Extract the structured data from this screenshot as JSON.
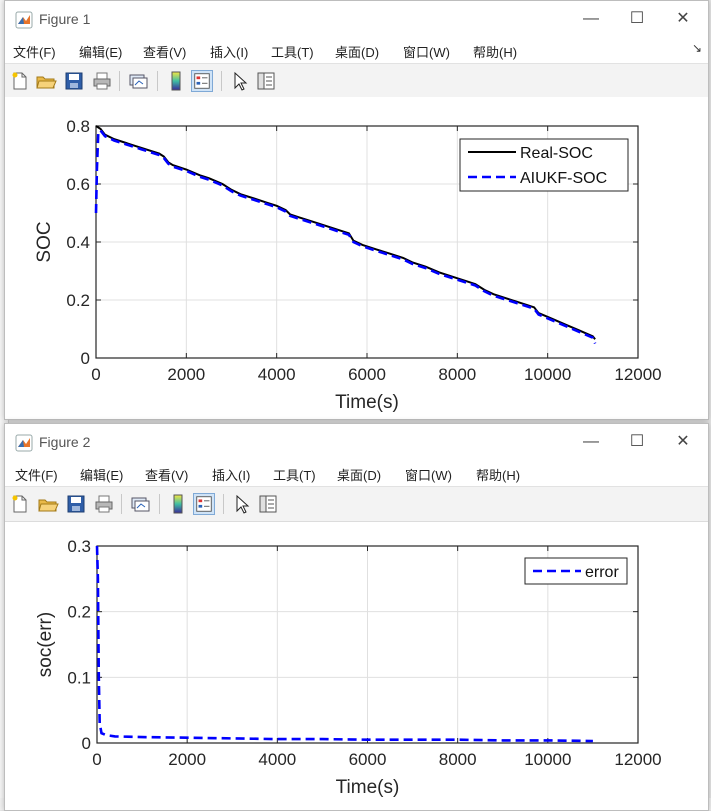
{
  "menu_labels": [
    "文件(F)",
    "编辑(E)",
    "查看(V)",
    "插入(I)",
    "工具(T)",
    "桌面(D)",
    "窗口(W)",
    "帮助(H)"
  ],
  "window_controls": {
    "minimize": "—",
    "maximize": "☐",
    "close": "✕"
  },
  "toolbar_icons": [
    "new-figure-icon",
    "open-file-icon",
    "save-icon",
    "print-icon",
    "link-plot-icon",
    "colorbar-icon",
    "legend-icon",
    "pointer-icon",
    "property-inspector-icon"
  ],
  "colors": {
    "real_soc": "#000000",
    "aiukf_soc": "#0000ff",
    "error": "#0000ff",
    "grid": "#e0e0e0",
    "axis": "#262626"
  },
  "windows": [
    {
      "title": "Figure 1"
    },
    {
      "title": "Figure 2"
    }
  ],
  "chart_data": [
    {
      "type": "line",
      "xlabel": "Time(s)",
      "ylabel": "SOC",
      "xlim": [
        0,
        12000
      ],
      "ylim": [
        0,
        0.8
      ],
      "xticks": [
        0,
        2000,
        4000,
        6000,
        8000,
        10000,
        12000
      ],
      "yticks": [
        0,
        0.2,
        0.4,
        0.6,
        0.8
      ],
      "ytick_labels": [
        "0",
        "0.2",
        "0.4",
        "0.6",
        "0.8"
      ],
      "grid": true,
      "legend_position": "top-right",
      "series": [
        {
          "name": "Real-SOC",
          "style": "solid",
          "x": [
            0,
            100,
            200,
            400,
            600,
            800,
            1000,
            1200,
            1400,
            1500,
            1600,
            1700,
            2000,
            2300,
            2500,
            2800,
            3000,
            3200,
            3500,
            3800,
            4000,
            4200,
            4300,
            4500,
            4800,
            5100,
            5400,
            5600,
            5700,
            5900,
            6200,
            6500,
            6800,
            7000,
            7300,
            7600,
            7900,
            8200,
            8400,
            8600,
            8800,
            9100,
            9400,
            9700,
            9800,
            10100,
            10400,
            10700,
            11000,
            11050
          ],
          "y": [
            0.8,
            0.79,
            0.77,
            0.755,
            0.745,
            0.735,
            0.725,
            0.715,
            0.705,
            0.695,
            0.675,
            0.665,
            0.65,
            0.63,
            0.62,
            0.6,
            0.58,
            0.565,
            0.55,
            0.535,
            0.525,
            0.51,
            0.495,
            0.485,
            0.47,
            0.455,
            0.44,
            0.43,
            0.405,
            0.39,
            0.375,
            0.36,
            0.345,
            0.33,
            0.315,
            0.295,
            0.28,
            0.265,
            0.255,
            0.235,
            0.22,
            0.205,
            0.19,
            0.175,
            0.155,
            0.135,
            0.115,
            0.095,
            0.075,
            0.065
          ]
        },
        {
          "name": "AIUKF-SOC",
          "style": "dashed",
          "x": [
            0,
            20,
            50,
            100,
            200,
            400,
            600,
            800,
            1000,
            1200,
            1400,
            1500,
            1600,
            1700,
            2000,
            2300,
            2500,
            2800,
            3000,
            3200,
            3500,
            3800,
            4000,
            4200,
            4300,
            4500,
            4800,
            5100,
            5400,
            5600,
            5700,
            5900,
            6200,
            6500,
            6800,
            7000,
            7300,
            7600,
            7900,
            8200,
            8400,
            8600,
            8800,
            9100,
            9400,
            9700,
            9800,
            10100,
            10400,
            10700,
            11000,
            11050
          ],
          "y": [
            0.5,
            0.65,
            0.78,
            0.785,
            0.765,
            0.75,
            0.74,
            0.73,
            0.72,
            0.71,
            0.7,
            0.69,
            0.67,
            0.66,
            0.645,
            0.625,
            0.615,
            0.595,
            0.575,
            0.56,
            0.545,
            0.53,
            0.52,
            0.505,
            0.49,
            0.48,
            0.465,
            0.45,
            0.435,
            0.425,
            0.4,
            0.385,
            0.37,
            0.355,
            0.34,
            0.325,
            0.31,
            0.29,
            0.275,
            0.26,
            0.25,
            0.23,
            0.215,
            0.2,
            0.185,
            0.17,
            0.15,
            0.13,
            0.11,
            0.09,
            0.07,
            0.05
          ]
        }
      ]
    },
    {
      "type": "line",
      "xlabel": "Time(s)",
      "ylabel": "soc(err)",
      "xlim": [
        0,
        12000
      ],
      "ylim": [
        0,
        0.3
      ],
      "xticks": [
        0,
        2000,
        4000,
        6000,
        8000,
        10000,
        12000
      ],
      "yticks": [
        0,
        0.1,
        0.2,
        0.3
      ],
      "ytick_labels": [
        "0",
        "0.1",
        "0.2",
        "0.3"
      ],
      "grid": true,
      "legend_position": "top-right",
      "series": [
        {
          "name": "error",
          "style": "dashed",
          "x": [
            0,
            20,
            40,
            60,
            100,
            200,
            400,
            1000,
            2000,
            3000,
            4000,
            5000,
            6000,
            7000,
            8000,
            9000,
            10000,
            11000
          ],
          "y": [
            0.3,
            0.25,
            0.1,
            0.03,
            0.015,
            0.012,
            0.01,
            0.009,
            0.008,
            0.007,
            0.006,
            0.006,
            0.005,
            0.005,
            0.005,
            0.004,
            0.004,
            0.003
          ]
        }
      ]
    }
  ]
}
